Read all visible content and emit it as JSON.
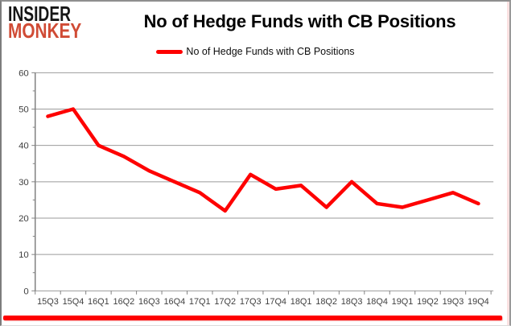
{
  "logo": {
    "line1": "INSIDER",
    "line2": "MONKEY"
  },
  "header": {
    "title": "No of Hedge Funds with CB Positions"
  },
  "legend": {
    "label": "No of Hedge Funds with CB Positions"
  },
  "colors": {
    "line": "#fe0000",
    "logo_accent": "#d04b35",
    "grid": "#9b9b9b",
    "axis": "#808080",
    "axis_text": "#3f3f3f",
    "bottom_bar": "#fe0000"
  },
  "chart_data": {
    "type": "line",
    "title": "No of Hedge Funds with CB Positions",
    "categories": [
      "15Q3",
      "15Q4",
      "16Q1",
      "16Q2",
      "16Q3",
      "16Q4",
      "17Q1",
      "17Q2",
      "17Q3",
      "17Q4",
      "18Q1",
      "18Q2",
      "18Q3",
      "18Q4",
      "19Q1",
      "19Q2",
      "19Q3",
      "19Q4"
    ],
    "series": [
      {
        "name": "No of Hedge Funds with CB Positions",
        "values": [
          48,
          50,
          40,
          37,
          33,
          30,
          27,
          22,
          32,
          28,
          29,
          23,
          30,
          24,
          23,
          25,
          27,
          24
        ]
      }
    ],
    "xlabel": "",
    "ylabel": "",
    "ylim": [
      0,
      60
    ],
    "ytick_step": 10,
    "ytick_minor_step": 5,
    "grid": "horizontal",
    "legend_position": "top"
  }
}
